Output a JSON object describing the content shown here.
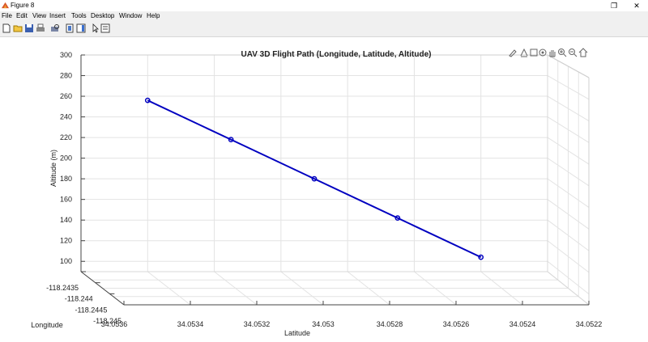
{
  "window": {
    "title": "Figure 8",
    "restore_glyph": "❐",
    "close_glyph": "✕"
  },
  "menu": [
    "File",
    "Edit",
    "View",
    "Insert",
    "Tools",
    "Desktop",
    "Window",
    "Help"
  ],
  "toolbar_icons": [
    "new-figure-icon",
    "open-file-icon",
    "save-icon",
    "print-icon",
    "print-preview-icon",
    "link-plot-icon",
    "insert-colorbar-icon",
    "insert-legend-icon",
    "edit-plot-arrow-icon",
    "open-property-inspector-icon"
  ],
  "axes_toolbar_icons": [
    "brush-icon",
    "data-tips-icon",
    "export-icon",
    "rotate-3d-icon",
    "pan-icon",
    "zoom-in-icon",
    "zoom-out-icon",
    "restore-view-icon"
  ],
  "chart_data": {
    "type": "line",
    "title": "UAV 3D Flight Path (Longitude, Latitude, Altitude)",
    "xlabel": "Latitude",
    "ylabel": "Longitude",
    "zlabel": "Altitude (m)",
    "x_ticks": [
      "34.0536",
      "34.0534",
      "34.0532",
      "34.053",
      "34.0528",
      "34.0526",
      "34.0524",
      "34.0522"
    ],
    "y_ticks": [
      "-118.2435",
      "-118.244",
      "-118.2445",
      "-118.245"
    ],
    "z_ticks": [
      "100",
      "120",
      "140",
      "160",
      "180",
      "200",
      "220",
      "240",
      "260",
      "280",
      "300"
    ],
    "xlim": [
      34.0522,
      34.0536
    ],
    "zlim": [
      90,
      300
    ],
    "grid": true,
    "line_color": "#0000c0",
    "series": [
      {
        "latitude": [
          34.0534,
          34.05315,
          34.0529,
          34.05265,
          34.0524
        ],
        "altitude": [
          256,
          218,
          180,
          142,
          104
        ]
      }
    ]
  }
}
